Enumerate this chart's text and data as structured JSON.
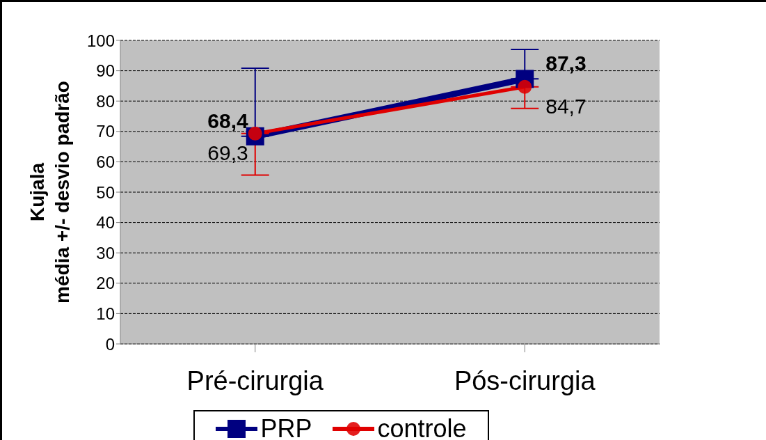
{
  "chart_data": {
    "type": "line",
    "ylabel": "Kujala\nmédia +/- desvio padrão",
    "categories": [
      "Pré-cirurgia",
      "Pós-cirurgia"
    ],
    "series": [
      {
        "name": "PRP",
        "color": "#000080",
        "values": [
          68.4,
          87.3
        ],
        "errors": [
          [
            68.4,
            90.8
          ],
          [
            87.3,
            97.0
          ]
        ],
        "value_labels": [
          "68,4",
          "87,3"
        ],
        "marker": "square"
      },
      {
        "name": "controle",
        "color": "#e00000",
        "values": [
          69.3,
          84.7
        ],
        "errors": [
          [
            55.6,
            69.3
          ],
          [
            77.6,
            84.7
          ]
        ],
        "value_labels": [
          "69,3",
          "84,7"
        ],
        "marker": "circle"
      }
    ],
    "ylim": [
      0,
      100
    ],
    "yticks": [
      0,
      10,
      20,
      30,
      40,
      50,
      60,
      70,
      80,
      90,
      100
    ],
    "grid": "y",
    "legend": "bottom"
  }
}
